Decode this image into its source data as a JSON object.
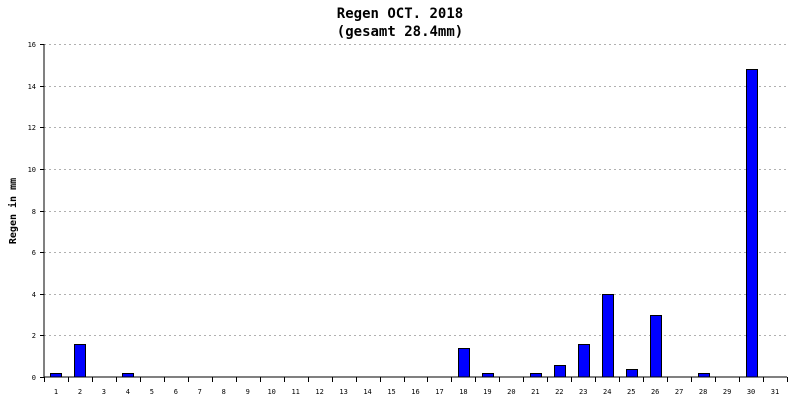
{
  "chart_data": {
    "type": "bar",
    "title": "Regen OCT. 2018",
    "subtitle": "(gesamt 28.4mm)",
    "ylabel": "Regen in mm",
    "xlabel": "",
    "ylim": [
      0,
      16
    ],
    "yticks": [
      "0",
      "2",
      "4",
      "6",
      "8",
      "10",
      "12",
      "14",
      "16"
    ],
    "categories": [
      "1",
      "2",
      "3",
      "4",
      "5",
      "6",
      "7",
      "8",
      "9",
      "10",
      "11",
      "12",
      "13",
      "14",
      "15",
      "16",
      "17",
      "18",
      "19",
      "20",
      "21",
      "22",
      "23",
      "24",
      "25",
      "26",
      "27",
      "28",
      "29",
      "30",
      "31"
    ],
    "values": [
      0.2,
      1.6,
      0,
      0.2,
      0,
      0,
      0,
      0,
      0,
      0,
      0,
      0,
      0,
      0,
      0,
      0,
      0,
      1.4,
      0.2,
      0,
      0.2,
      0.6,
      1.6,
      4.0,
      0.4,
      3.0,
      0,
      0.2,
      0,
      14.8,
      0
    ],
    "bar_color": "#0000ff",
    "bar_edge_color": "#000000",
    "grid": true,
    "grid_color": "#b0b0b0",
    "legend": false
  }
}
